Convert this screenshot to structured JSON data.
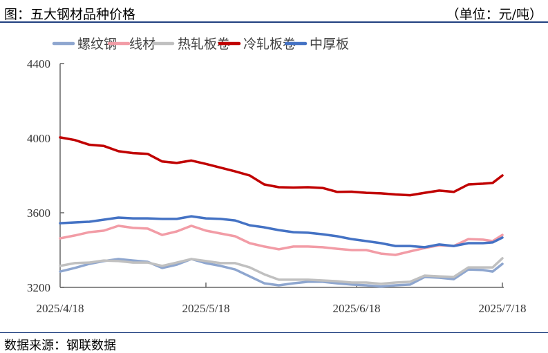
{
  "header": {
    "title": "图：五大钢材品种价格",
    "unit": "（单位：元/吨）"
  },
  "footer": {
    "source": "数据来源：钢联数据"
  },
  "chart_data": {
    "type": "line",
    "title": "图：五大钢材品种价格",
    "ylabel": "元/吨",
    "ylim": [
      3200,
      4400
    ],
    "yticks": [
      "3200",
      "3600",
      "4000",
      "4400"
    ],
    "xlim": [
      "2025-04-18",
      "2025-07-18"
    ],
    "xticks": [
      "2025/4/18",
      "2025/5/18",
      "2025/6/18",
      "2025/7/18"
    ],
    "grid": false,
    "legend": "top",
    "x": [
      "2025-04-18",
      "2025-04-21",
      "2025-04-24",
      "2025-04-27",
      "2025-04-30",
      "2025-05-03",
      "2025-05-06",
      "2025-05-09",
      "2025-05-12",
      "2025-05-15",
      "2025-05-18",
      "2025-05-21",
      "2025-05-24",
      "2025-05-27",
      "2025-05-30",
      "2025-06-02",
      "2025-06-05",
      "2025-06-08",
      "2025-06-11",
      "2025-06-14",
      "2025-06-17",
      "2025-06-20",
      "2025-06-23",
      "2025-06-26",
      "2025-06-29",
      "2025-07-02",
      "2025-07-05",
      "2025-07-08",
      "2025-07-11",
      "2025-07-14",
      "2025-07-16",
      "2025-07-18"
    ],
    "series": [
      {
        "name": "螺纹钢",
        "color": "#8ea6cf",
        "values": [
          3285,
          3304,
          3326,
          3341,
          3352,
          3344,
          3337,
          3304,
          3322,
          3352,
          3330,
          3315,
          3296,
          3259,
          3222,
          3211,
          3222,
          3230,
          3230,
          3222,
          3215,
          3211,
          3204,
          3211,
          3215,
          3256,
          3252,
          3244,
          3296,
          3293,
          3285,
          3326
        ]
      },
      {
        "name": "线材",
        "color": "#f29ca6",
        "values": [
          3463,
          3478,
          3496,
          3504,
          3530,
          3519,
          3515,
          3481,
          3500,
          3530,
          3504,
          3489,
          3474,
          3437,
          3419,
          3404,
          3419,
          3419,
          3415,
          3407,
          3400,
          3400,
          3381,
          3374,
          3393,
          3411,
          3426,
          3422,
          3459,
          3456,
          3448,
          3481
        ]
      },
      {
        "name": "热轧板卷",
        "color": "#c0c0c0",
        "values": [
          3315,
          3330,
          3333,
          3344,
          3341,
          3333,
          3333,
          3315,
          3333,
          3352,
          3341,
          3330,
          3330,
          3307,
          3270,
          3241,
          3241,
          3241,
          3237,
          3233,
          3226,
          3226,
          3219,
          3226,
          3230,
          3263,
          3259,
          3256,
          3307,
          3307,
          3307,
          3356
        ]
      },
      {
        "name": "冷轧板卷",
        "color": "#c00000",
        "values": [
          4004,
          3990,
          3965,
          3958,
          3930,
          3920,
          3916,
          3875,
          3867,
          3880,
          3862,
          3842,
          3822,
          3800,
          3752,
          3737,
          3735,
          3737,
          3733,
          3712,
          3713,
          3707,
          3704,
          3698,
          3694,
          3707,
          3719,
          3712,
          3752,
          3756,
          3760,
          3800
        ]
      },
      {
        "name": "中厚板",
        "color": "#4472c4",
        "values": [
          3544,
          3548,
          3552,
          3563,
          3574,
          3570,
          3570,
          3567,
          3567,
          3581,
          3570,
          3567,
          3559,
          3533,
          3522,
          3507,
          3496,
          3493,
          3485,
          3474,
          3459,
          3448,
          3437,
          3422,
          3422,
          3415,
          3430,
          3422,
          3437,
          3437,
          3441,
          3467
        ]
      }
    ]
  }
}
